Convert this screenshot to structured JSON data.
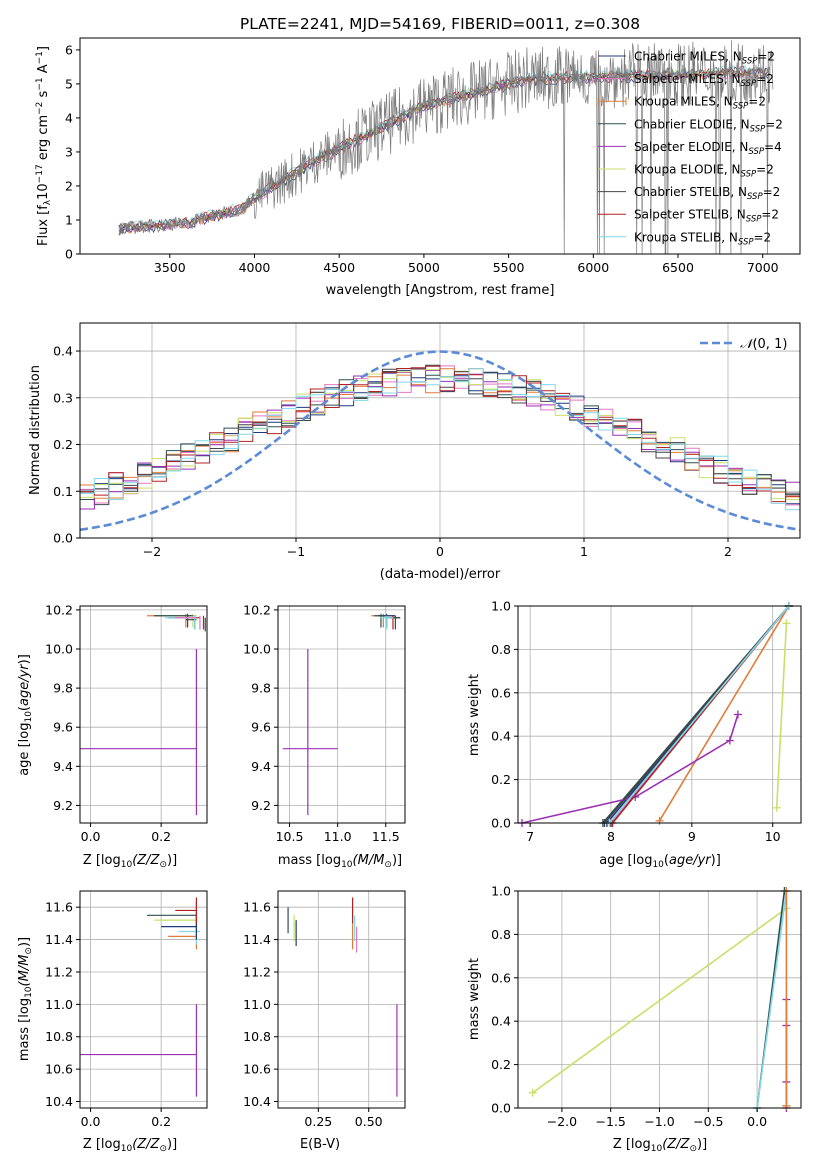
{
  "chart_data": [
    {
      "id": "spectrum",
      "type": "line",
      "title": "PLATE=2241, MJD=54169, FIBERID=0011, z=0.308",
      "xlabel": "wavelength [Angstrom, rest frame]",
      "ylabel_parts": {
        "a": "Flux [f",
        "b": "λ",
        "c": "10",
        "d": "−17",
        "e": " erg cm",
        "f": "−2",
        "g": " s",
        "h": "−1",
        "i": " A",
        "j": "−1",
        "k": "]"
      },
      "xlim": [
        2970,
        7220
      ],
      "ylim": [
        0,
        6.35
      ],
      "xticks": [
        3500,
        4000,
        4500,
        5000,
        5500,
        6000,
        6500,
        7000
      ],
      "yticks": [
        0,
        1,
        2,
        3,
        4,
        5,
        6
      ],
      "grid": false,
      "legend_position": "top-right",
      "data_note": "Grey observed spectrum with 9 overlapping colored SSP model fits, ~0.8 near 3200A rising to ~5.2 by 5500A then flat.",
      "models": [
        {
          "name": "Chabrier MILES",
          "color": "#1f3a7a",
          "dash": false,
          "n": "2"
        },
        {
          "name": "Salpeter MILES",
          "color": "#e377c2",
          "dash": false,
          "n": "2"
        },
        {
          "name": "Kroupa MILES",
          "color": "#e07b39",
          "dash": false,
          "n": "2",
          "plus": true
        },
        {
          "name": "Chabrier ELODIE",
          "color": "#2f4f4f",
          "dash": false,
          "n": "2"
        },
        {
          "name": "Salpeter ELODIE",
          "color": "#9b30b5",
          "dash": false,
          "n": "4"
        },
        {
          "name": "Kroupa ELODIE",
          "color": "#c8e06a",
          "dash": false,
          "n": "2"
        },
        {
          "name": "Chabrier STELIB",
          "color": "#444444",
          "dash": false,
          "n": "2"
        },
        {
          "name": "Salpeter STELIB",
          "color": "#b22222",
          "dash": false,
          "n": "2"
        },
        {
          "name": "Kroupa STELIB",
          "color": "#80d8e8",
          "dash": false,
          "n": "2"
        }
      ],
      "legend_n_label": "N",
      "legend_n_sub": "SSP"
    },
    {
      "id": "residuals",
      "type": "histogram",
      "xlabel": "(data-model)/error",
      "ylabel": "Normed distribution",
      "xlim": [
        -2.5,
        2.5
      ],
      "ylim": [
        0,
        0.46
      ],
      "xticks": [
        -2,
        -1,
        0,
        1,
        2
      ],
      "yticks": [
        0.0,
        0.1,
        0.2,
        0.3,
        0.4
      ],
      "grid": true,
      "legend_position": "top-right",
      "reference_curve": {
        "name": "N(0, 1)",
        "label_parts": {
          "a": "𝒩",
          "b": "(0, 1)"
        },
        "color": "#5b8ad6"
      },
      "data_note": "Nine step histograms broadly peaking ~0.3-0.45 near 0, falling to ~0.05 at ±2.5."
    },
    {
      "id": "age_vs_Z",
      "type": "errorbar",
      "xlabel_parts": {
        "a": "Z [log",
        "b": "10",
        "c": "(Z/Z",
        "d": "⊙",
        "e": ")]"
      },
      "ylabel_parts": {
        "a": "age  [log",
        "b": "10",
        "c": "(",
        "d": "age/yr",
        "e": ")]"
      },
      "xlim": [
        -0.03,
        0.33
      ],
      "ylim": [
        9.11,
        10.22
      ],
      "xticks": [
        0.0,
        0.2
      ],
      "yticks": [
        9.2,
        9.4,
        9.6,
        9.8,
        10.0,
        10.2
      ],
      "grid": true
    },
    {
      "id": "age_vs_mass",
      "type": "errorbar",
      "xlabel_parts": {
        "a": "mass [log",
        "b": "10",
        "c": "(M/M",
        "d": "⊙",
        "e": ")]"
      },
      "xlim": [
        10.38,
        11.7
      ],
      "ylim": [
        9.11,
        10.22
      ],
      "xticks": [
        10.5,
        11.0,
        11.5
      ],
      "yticks": [
        9.2,
        9.4,
        9.6,
        9.8,
        10.0,
        10.2
      ],
      "grid": true
    },
    {
      "id": "massweight_vs_age",
      "type": "line",
      "xlabel_parts": {
        "a": "age  [log",
        "b": "10",
        "c": "(",
        "d": "age/yr",
        "e": ")]"
      },
      "ylabel": "mass weight",
      "xlim": [
        6.85,
        10.35
      ],
      "ylim": [
        0,
        1
      ],
      "xticks": [
        7,
        8,
        9,
        10
      ],
      "yticks": [
        0.0,
        0.2,
        0.4,
        0.6,
        0.8,
        1.0
      ],
      "grid": true,
      "series": [
        {
          "color": "#1f3a7a",
          "x": [
            7.95,
            10.2
          ],
          "y": [
            0.0,
            1.0
          ]
        },
        {
          "color": "#e377c2",
          "x": [
            8.0,
            10.2
          ],
          "y": [
            0.0,
            1.0
          ]
        },
        {
          "color": "#e07b39",
          "x": [
            8.6,
            10.2
          ],
          "y": [
            0.01,
            1.0
          ]
        },
        {
          "color": "#2f4f4f",
          "x": [
            7.9,
            10.2
          ],
          "y": [
            0.0,
            1.0
          ]
        },
        {
          "color": "#9b30b5",
          "x": [
            6.9,
            8.3,
            9.47,
            9.57
          ],
          "y": [
            0.0,
            0.12,
            0.38,
            0.5
          ]
        },
        {
          "color": "#c8e06a",
          "x": [
            10.05,
            10.17
          ],
          "y": [
            0.07,
            0.92
          ]
        },
        {
          "color": "#444444",
          "x": [
            7.92,
            10.2
          ],
          "y": [
            0.0,
            1.0
          ]
        },
        {
          "color": "#b22222",
          "x": [
            8.02,
            10.2
          ],
          "y": [
            0.0,
            1.0
          ]
        },
        {
          "color": "#80d8e8",
          "x": [
            7.98,
            10.2
          ],
          "y": [
            0.0,
            1.0
          ]
        }
      ]
    },
    {
      "id": "mass_vs_Z",
      "type": "errorbar",
      "xlabel_parts": {
        "a": "Z [log",
        "b": "10",
        "c": "(Z/Z",
        "d": "⊙",
        "e": ")]"
      },
      "ylabel_parts": {
        "a": "mass [log",
        "b": "10",
        "c": "(M/M",
        "d": "⊙",
        "e": ")]"
      },
      "xlim": [
        -0.03,
        0.33
      ],
      "ylim": [
        10.36,
        11.7
      ],
      "xticks": [
        0.0,
        0.2
      ],
      "yticks": [
        10.4,
        10.6,
        10.8,
        11.0,
        11.2,
        11.4,
        11.6
      ],
      "grid": true
    },
    {
      "id": "mass_vs_ebv",
      "type": "errorbar",
      "xlabel": "E(B-V)",
      "xlim": [
        0.05,
        0.68
      ],
      "ylim": [
        10.36,
        11.7
      ],
      "xticks": [
        0.25,
        0.5
      ],
      "yticks": [
        10.4,
        10.6,
        10.8,
        11.0,
        11.2,
        11.4,
        11.6
      ],
      "grid": true
    },
    {
      "id": "massweight_vs_Z",
      "type": "line",
      "xlabel_parts": {
        "a": "Z [log",
        "b": "10",
        "c": "(Z/Z",
        "d": "⊙",
        "e": ")]"
      },
      "ylabel": "mass weight",
      "xlim": [
        -2.45,
        0.45
      ],
      "ylim": [
        0,
        1
      ],
      "xticks": [
        -2.0,
        -1.5,
        -1.0,
        -0.5,
        0.0
      ],
      "yticks": [
        0.0,
        0.2,
        0.4,
        0.6,
        0.8,
        1.0
      ],
      "grid": true,
      "series": [
        {
          "color": "#c8e06a",
          "x": [
            -2.3,
            0.3
          ],
          "y": [
            0.07,
            0.92
          ]
        },
        {
          "color": "#2f4f4f",
          "x": [
            0.0,
            0.28
          ],
          "y": [
            0.0,
            1.0
          ]
        },
        {
          "color": "#80d8e8",
          "x": [
            0.0,
            0.3
          ],
          "y": [
            0.0,
            1.0
          ]
        },
        {
          "color": "#9b30b5",
          "x": [
            0.3,
            0.3,
            0.3,
            0.3
          ],
          "y": [
            0.0,
            0.12,
            0.38,
            0.5
          ]
        },
        {
          "color": "#e07b39",
          "x": [
            0.3,
            0.3
          ],
          "y": [
            0.01,
            1.0
          ]
        }
      ]
    }
  ]
}
